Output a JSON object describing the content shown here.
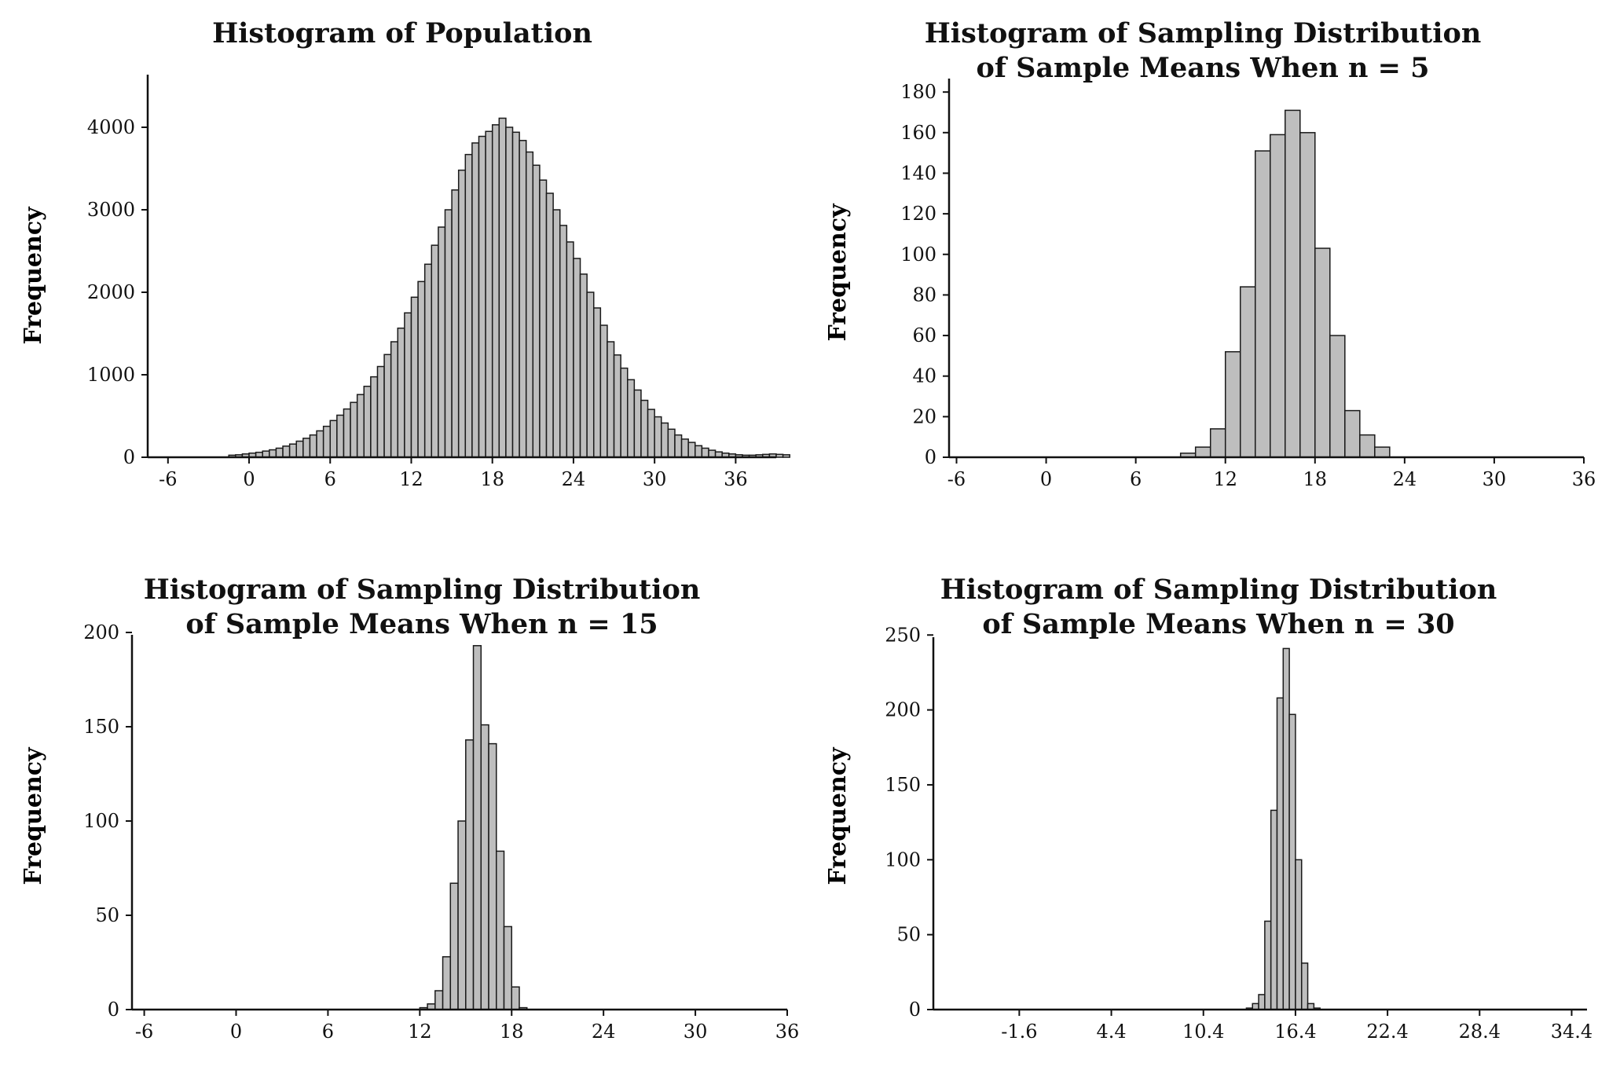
{
  "chart_data": [
    {
      "type": "bar",
      "title": "Histogram of Population",
      "ylabel": "Frequency",
      "xlabel": "",
      "xlim": [
        -7.5,
        39
      ],
      "ylim": [
        0,
        4400
      ],
      "xticks": [
        -6,
        0,
        6,
        12,
        18,
        24,
        30,
        36
      ],
      "xtick_labels": [
        "-6",
        "0",
        "6",
        "12",
        "18",
        "24",
        "30",
        "36"
      ],
      "yticks": [
        0,
        1000,
        2000,
        3000,
        4000
      ],
      "ytick_labels": [
        "0",
        "1000",
        "2000",
        "3000",
        "4000"
      ],
      "bin_start": -1.5,
      "bin_width": 0.5,
      "values": [
        25,
        30,
        40,
        50,
        60,
        75,
        90,
        110,
        135,
        160,
        195,
        230,
        270,
        320,
        375,
        445,
        510,
        585,
        665,
        760,
        860,
        975,
        1100,
        1245,
        1400,
        1565,
        1750,
        1940,
        2130,
        2340,
        2570,
        2790,
        3000,
        3240,
        3480,
        3670,
        3810,
        3890,
        3950,
        4030,
        4110,
        4000,
        3940,
        3840,
        3700,
        3540,
        3360,
        3200,
        3000,
        2810,
        2610,
        2410,
        2220,
        2000,
        1810,
        1600,
        1400,
        1240,
        1080,
        940,
        815,
        690,
        580,
        490,
        415,
        340,
        270,
        220,
        180,
        140,
        110,
        85,
        65,
        50,
        40,
        30,
        25,
        25,
        30,
        35,
        40,
        35,
        30
      ]
    },
    {
      "type": "bar",
      "title": "Histogram of Sampling Distribution of Sample Means When n = 5",
      "ylabel": "Frequency",
      "xlabel": "",
      "xlim": [
        -6.5,
        36
      ],
      "ylim": [
        0,
        182
      ],
      "xticks": [
        -6,
        0,
        6,
        12,
        18,
        24,
        30,
        36
      ],
      "xtick_labels": [
        "-6",
        "0",
        "6",
        "12",
        "18",
        "24",
        "30",
        "36"
      ],
      "yticks": [
        0,
        20,
        40,
        60,
        80,
        100,
        120,
        140,
        160,
        180
      ],
      "ytick_labels": [
        "0",
        "20",
        "40",
        "60",
        "80",
        "100",
        "120",
        "140",
        "160",
        "180"
      ],
      "bin_start": 9,
      "bin_width": 1,
      "values": [
        2,
        5,
        14,
        52,
        84,
        151,
        159,
        171,
        160,
        103,
        60,
        23,
        11,
        5
      ]
    },
    {
      "type": "bar",
      "title": "Histogram of Sampling Distribution of Sample Means When n = 15",
      "ylabel": "Frequency",
      "xlabel": "",
      "xlim": [
        -6.8,
        36
      ],
      "ylim": [
        0,
        205
      ],
      "xticks": [
        -6,
        0,
        6,
        12,
        18,
        24,
        30,
        36
      ],
      "xtick_labels": [
        "-6",
        "0",
        "6",
        "12",
        "18",
        "24",
        "30",
        "36"
      ],
      "yticks": [
        0,
        50,
        100,
        150,
        200
      ],
      "ytick_labels": [
        "0",
        "50",
        "100",
        "150",
        "200"
      ],
      "bin_start": 12,
      "bin_width": 0.5,
      "values": [
        1,
        3,
        10,
        28,
        67,
        100,
        143,
        193,
        151,
        141,
        84,
        44,
        12,
        1
      ]
    },
    {
      "type": "bar",
      "title": "Histogram of Sampling Distribution of Sample Means When n = 30",
      "ylabel": "Frequency",
      "xlabel": "",
      "xlim": [
        -7.2,
        35.4
      ],
      "ylim": [
        0,
        258
      ],
      "xticks": [
        -1.6,
        4.4,
        10.4,
        16.4,
        22.4,
        28.4,
        34.4
      ],
      "xtick_labels": [
        "-1.6",
        "4.4",
        "10.4",
        "16.4",
        "22.4",
        "28.4",
        "34.4"
      ],
      "yticks": [
        0,
        50,
        100,
        150,
        200,
        250
      ],
      "ytick_labels": [
        "0",
        "50",
        "100",
        "150",
        "200",
        "250"
      ],
      "bin_start": 13.2,
      "bin_width": 0.4,
      "values": [
        1,
        4,
        10,
        59,
        133,
        208,
        241,
        197,
        100,
        31,
        4,
        1
      ]
    }
  ]
}
